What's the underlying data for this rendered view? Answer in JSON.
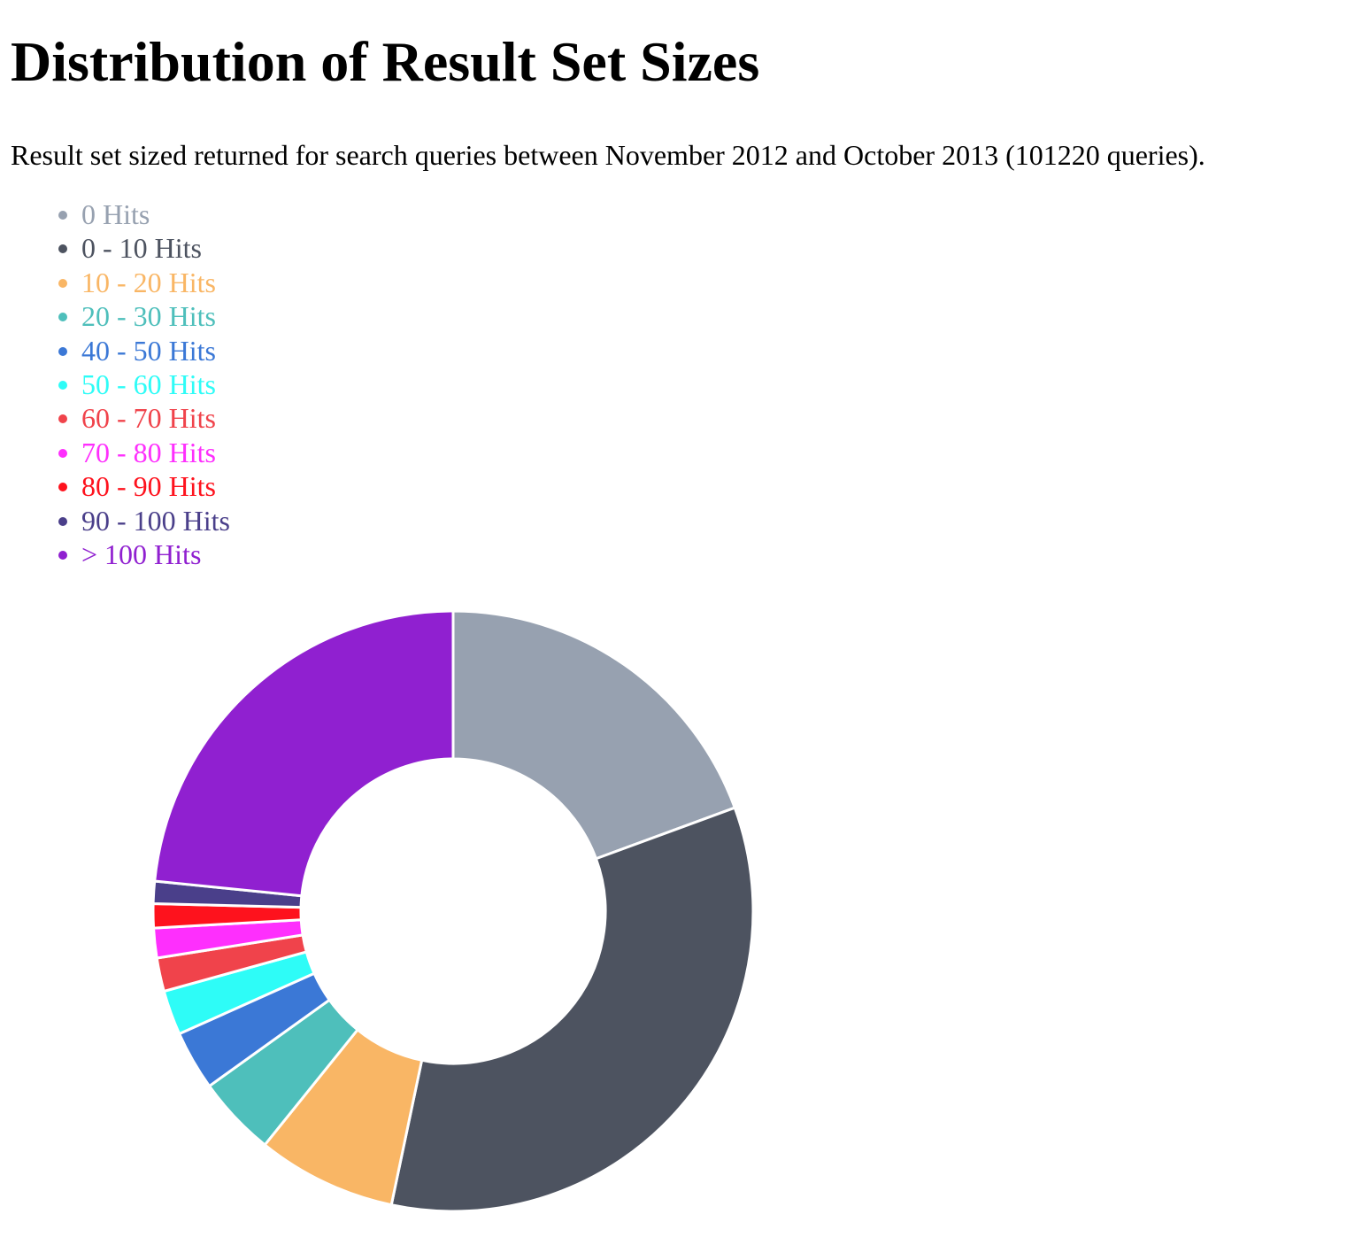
{
  "page": {
    "title": "Distribution of Result Set Sizes",
    "description": "Result set sized returned for search queries between November 2012 and October 2013 (101220 queries)."
  },
  "chart_data": {
    "type": "pie",
    "donut": true,
    "legend_position": "top-left",
    "categories": [
      "0 Hits",
      "0 - 10 Hits",
      "10 - 20 Hits",
      "20 - 30 Hits",
      "40 - 50 Hits",
      "50 - 60 Hits",
      "60 - 70 Hits",
      "70 - 80 Hits",
      "80 - 90 Hits",
      "90 - 100 Hits",
      "> 100 Hits"
    ],
    "values": [
      19.4,
      33.9,
      7.5,
      4.3,
      3.2,
      2.4,
      1.8,
      1.6,
      1.3,
      1.2,
      23.4
    ],
    "colors": [
      "#97a1b0",
      "#4d5360",
      "#f9b665",
      "#4ebfbb",
      "#3b78d6",
      "#2efcf7",
      "#f0434b",
      "#fe2ffd",
      "#fe121d",
      "#4a3f8a",
      "#9020d0"
    ],
    "segment_stroke_color": "#ffffff"
  }
}
